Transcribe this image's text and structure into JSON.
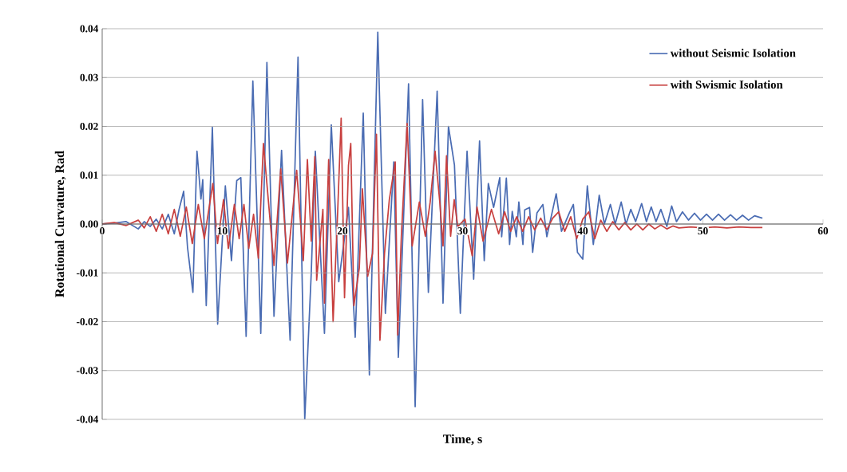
{
  "chart_data": {
    "type": "line",
    "xlabel": "Time, s",
    "ylabel": "Rotational Curvature,  Rad",
    "xlim": [
      0,
      60
    ],
    "xticks": [
      0,
      10,
      20,
      30,
      40,
      50,
      60
    ],
    "ylim": [
      -0.04,
      0.04
    ],
    "yticks": [
      -0.04,
      -0.03,
      -0.02,
      -0.01,
      {
        "value": 0,
        "label": "0.00"
      },
      0.01,
      0.02,
      0.03,
      0.04
    ],
    "grid": "y",
    "legend": "top right",
    "marker": "none",
    "line_style": "solid",
    "series": [
      {
        "name": "without Seismic Isolation",
        "color": "#4a6cb3",
        "x": [
          0,
          1,
          2,
          3,
          3.5,
          4,
          4.5,
          5,
          5.5,
          6,
          6.4,
          6.78,
          7.1,
          7.55,
          7.89,
          8.22,
          8.37,
          8.66,
          9.17,
          9.61,
          10.25,
          10.76,
          11.2,
          11.54,
          11.98,
          12.54,
          13.2,
          13.71,
          14.3,
          14.93,
          15.64,
          16.3,
          16.86,
          17.4,
          17.74,
          18.5,
          19.07,
          19.69,
          20.5,
          21.06,
          21.73,
          22.24,
          22.94,
          23.57,
          24.27,
          24.65,
          25.5,
          26.05,
          26.67,
          27.15,
          27.88,
          28.37,
          28.82,
          29.32,
          29.81,
          30.37,
          30.92,
          31.41,
          31.8,
          32.14,
          32.58,
          33.09,
          33.25,
          33.64,
          33.91,
          34.13,
          34.47,
          34.68,
          35.02,
          35.17,
          35.57,
          35.83,
          36.19,
          36.68,
          37.01,
          37.79,
          38.23,
          38.89,
          39.22,
          39.56,
          40.0,
          40.38,
          40.88,
          41.37,
          41.8,
          42.3,
          42.7,
          43.2,
          43.6,
          44.0,
          44.4,
          44.9,
          45.3,
          45.7,
          46.1,
          46.5,
          47.0,
          47.4,
          47.8,
          48.3,
          48.8,
          49.3,
          49.8,
          50.3,
          50.8,
          51.3,
          51.8,
          52.3,
          52.8,
          53.3,
          53.8,
          54.3,
          54.95
        ],
        "values": [
          0,
          0.0002,
          0.0005,
          -0.001,
          0.0005,
          -0.0005,
          0.001,
          -0.001,
          0.002,
          -0.002,
          0.003,
          0.0067,
          -0.0047,
          -0.014,
          0.0149,
          0.0051,
          0.0091,
          -0.0167,
          0.0198,
          -0.0205,
          0.0078,
          -0.0075,
          0.0089,
          0.0095,
          -0.023,
          0.0293,
          -0.0224,
          0.0331,
          -0.0189,
          0.0151,
          -0.0238,
          0.0342,
          -0.04,
          -0.0101,
          0.0149,
          -0.0224,
          0.0203,
          -0.0118,
          0.0034,
          -0.0232,
          0.0227,
          -0.0309,
          0.0393,
          -0.0183,
          0.0127,
          -0.0273,
          0.0287,
          -0.0374,
          0.0255,
          -0.014,
          0.0272,
          -0.0162,
          0.02,
          0.0121,
          -0.0183,
          0.0149,
          -0.0113,
          0.017,
          -0.0075,
          0.0083,
          0.0034,
          0.0095,
          -0.0026,
          0.0094,
          -0.0042,
          0.0026,
          -0.0026,
          0.0045,
          -0.0042,
          0.0029,
          0.0034,
          -0.0058,
          0.0023,
          0.004,
          -0.0026,
          0.0062,
          -0.0015,
          0.0023,
          0.004,
          -0.0058,
          -0.0072,
          0.0078,
          -0.0042,
          0.0059,
          0.0,
          0.004,
          0.0,
          0.0045,
          0.0,
          0.003,
          0.0005,
          0.0042,
          0.0005,
          0.0035,
          0.0005,
          0.003,
          -0.0005,
          0.0037,
          0.0005,
          0.0025,
          0.0008,
          0.0022,
          0.0008,
          0.002,
          0.0008,
          0.002,
          0.0008,
          0.0019,
          0.0008,
          0.0018,
          0.0008,
          0.0017,
          0.0012
        ]
      },
      {
        "name": "with Swismic Isolation",
        "color": "#c8403f",
        "x": [
          0,
          1,
          2,
          3,
          3.5,
          4,
          4.5,
          5,
          5.5,
          6,
          6.5,
          7,
          7.5,
          8,
          8.5,
          9.21,
          9.6,
          10.1,
          10.5,
          11.0,
          11.4,
          11.8,
          12.2,
          12.6,
          13.0,
          13.42,
          14.3,
          14.86,
          15.42,
          16.19,
          16.74,
          17.08,
          17.4,
          17.7,
          17.85,
          18.37,
          18.5,
          18.85,
          19.22,
          19.6,
          19.89,
          20.17,
          20.5,
          20.69,
          20.95,
          21.4,
          21.66,
          22.1,
          22.5,
          22.83,
          23.12,
          23.5,
          23.9,
          24.39,
          24.6,
          24.9,
          25.38,
          25.8,
          26.4,
          26.9,
          27.3,
          27.71,
          28.1,
          28.37,
          28.66,
          29.0,
          29.3,
          29.6,
          30.2,
          30.8,
          31.2,
          31.7,
          32.4,
          33.0,
          33.5,
          34.0,
          34.5,
          35.0,
          35.5,
          36.0,
          36.5,
          37.0,
          37.5,
          38.0,
          38.5,
          39.0,
          39.5,
          40.0,
          40.5,
          41.0,
          41.5,
          42.0,
          42.5,
          43.0,
          43.5,
          44.0,
          44.5,
          45.0,
          45.5,
          46.0,
          46.5,
          47.0,
          47.5,
          48.0,
          49.0,
          50.0,
          51.0,
          52.0,
          53.0,
          54.0,
          54.95
        ],
        "values": [
          0,
          0.0003,
          -0.0003,
          0.0008,
          -0.0008,
          0.0015,
          -0.0015,
          0.002,
          -0.002,
          0.003,
          -0.0025,
          0.0035,
          -0.004,
          0.004,
          -0.003,
          0.0083,
          -0.004,
          0.005,
          -0.005,
          0.004,
          -0.003,
          0.004,
          -0.005,
          0.002,
          -0.007,
          0.0165,
          -0.0085,
          0.0113,
          -0.008,
          0.011,
          -0.0075,
          0.0132,
          -0.0035,
          0.0138,
          -0.0115,
          0.003,
          -0.0162,
          0.0132,
          -0.02,
          0.0025,
          0.0217,
          -0.0151,
          0.012,
          0.0165,
          -0.0167,
          -0.009,
          0.0072,
          -0.0107,
          -0.006,
          0.0184,
          -0.0238,
          -0.006,
          0.005,
          0.0127,
          -0.0227,
          -0.0025,
          0.0206,
          -0.0045,
          0.0045,
          -0.0025,
          0.0045,
          0.0149,
          0.0045,
          -0.0045,
          0.014,
          -0.0025,
          0.005,
          -0.0005,
          0.001,
          -0.0065,
          0.0035,
          -0.0035,
          0.003,
          -0.002,
          0.0025,
          -0.0015,
          0.0015,
          -0.0015,
          0.0015,
          -0.0012,
          0.0012,
          -0.0012,
          0.0012,
          0.0025,
          -0.0015,
          0.0015,
          -0.003,
          0.001,
          0.0025,
          -0.003,
          0.0008,
          -0.0015,
          0.0005,
          -0.0012,
          0.0003,
          -0.0012,
          0.0,
          -0.0012,
          0.0,
          -0.001,
          -0.0002,
          -0.001,
          -0.0004,
          -0.0008,
          -0.0006,
          -0.0008,
          -0.0006,
          -0.0008,
          -0.0006,
          -0.0007,
          -0.0007
        ]
      }
    ]
  }
}
